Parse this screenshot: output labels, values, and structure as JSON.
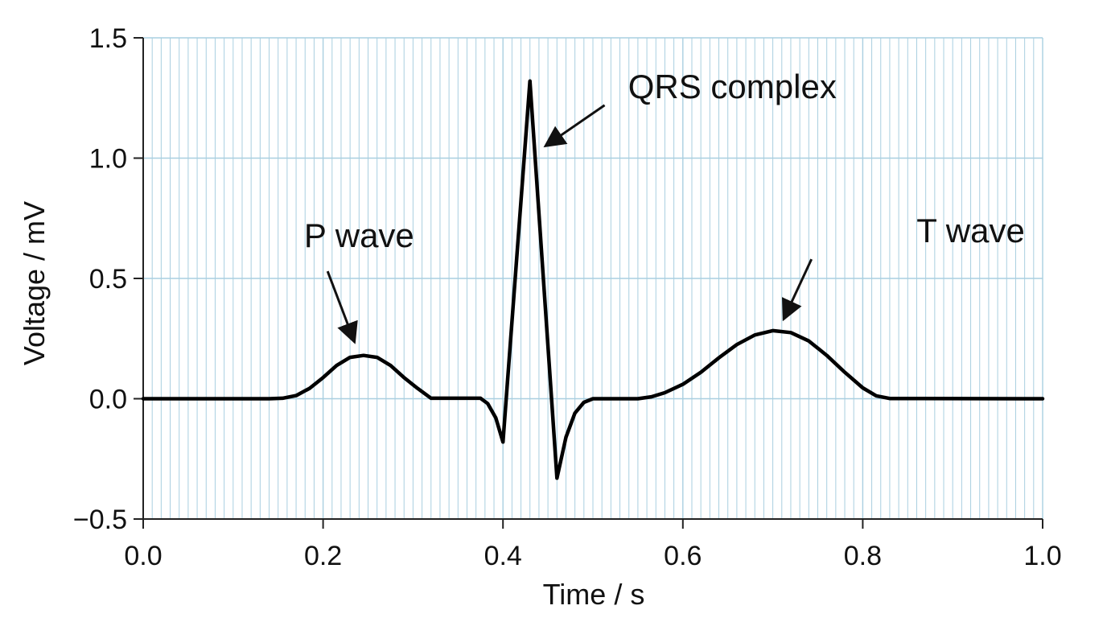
{
  "chart_data": {
    "type": "line",
    "title": "",
    "xlabel": "Time / s",
    "ylabel": "Voltage / mV",
    "xlim": [
      0,
      1
    ],
    "ylim": [
      -0.5,
      1.5
    ],
    "grid": true,
    "x_ticks": [
      0.0,
      0.2,
      0.4,
      0.6,
      0.8,
      1.0
    ],
    "x_tick_labels": [
      "0.0",
      "0.2",
      "0.4",
      "0.6",
      "0.8",
      "1.0"
    ],
    "y_ticks": [
      -0.5,
      0.0,
      0.5,
      1.0,
      1.5
    ],
    "y_tick_labels": [
      "−0.5",
      "0.0",
      "0.5",
      "1.0",
      "1.5"
    ],
    "colors": {
      "line": "#000000",
      "grid": "#a9cfe0",
      "axis": "#222222"
    },
    "series": [
      {
        "x": [
          0,
          0.14,
          0.155,
          0.17,
          0.185,
          0.2,
          0.215,
          0.23,
          0.245,
          0.26,
          0.275,
          0.29,
          0.305,
          0.32,
          0.375,
          0.383,
          0.392,
          0.4,
          0.43,
          0.46,
          0.47,
          0.48,
          0.49,
          0.5,
          0.55,
          0.565,
          0.58,
          0.6,
          0.62,
          0.64,
          0.66,
          0.68,
          0.7,
          0.72,
          0.74,
          0.76,
          0.78,
          0.8,
          0.815,
          0.83,
          1.0
        ],
        "y": [
          0,
          0,
          0.002,
          0.013,
          0.043,
          0.088,
          0.138,
          0.172,
          0.18,
          0.172,
          0.138,
          0.088,
          0.043,
          0.002,
          0.002,
          -0.02,
          -0.08,
          -0.18,
          1.32,
          -0.33,
          -0.16,
          -0.06,
          -0.015,
          0,
          0,
          0.008,
          0.025,
          0.06,
          0.11,
          0.17,
          0.225,
          0.265,
          0.283,
          0.275,
          0.24,
          0.18,
          0.11,
          0.045,
          0.012,
          0.001,
          0
        ]
      }
    ],
    "annotations": [
      {
        "text": "P wave",
        "label_x": 0.24,
        "label_y": 0.63,
        "arrow_from": [
          0.205,
          0.53
        ],
        "arrow_to": [
          0.235,
          0.235
        ]
      },
      {
        "text": "QRS complex",
        "label_x": 0.655,
        "label_y": 1.25,
        "arrow_from": [
          0.513,
          1.22
        ],
        "arrow_to": [
          0.447,
          1.05
        ]
      },
      {
        "text": "T wave",
        "label_x": 0.92,
        "label_y": 0.65,
        "arrow_from": [
          0.743,
          0.58
        ],
        "arrow_to": [
          0.712,
          0.33
        ]
      }
    ]
  }
}
